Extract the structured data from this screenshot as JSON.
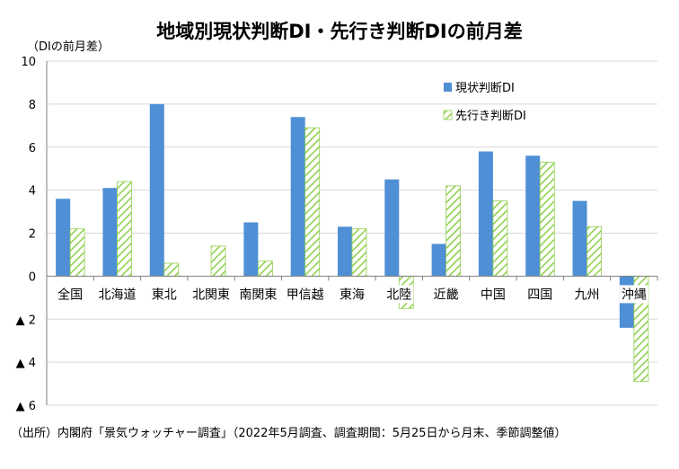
{
  "chart_data": {
    "type": "bar",
    "title": "地域別現状判断DI・先行き判断DIの前月差",
    "ylabel": "（DIの前月差）",
    "ylim": [
      -6,
      10
    ],
    "yticks": [
      10,
      8,
      6,
      4,
      2,
      0,
      -2,
      -4,
      -6
    ],
    "ytick_labels": [
      "10",
      "8",
      "6",
      "4",
      "2",
      "0",
      "▲ 2",
      "▲ 4",
      "▲ 6"
    ],
    "grid": true,
    "legend_position": "top-right",
    "categories": [
      "全国",
      "北海道",
      "東北",
      "北関東",
      "南関東",
      "甲信越",
      "東海",
      "北陸",
      "近畿",
      "中国",
      "四国",
      "九州",
      "沖縄"
    ],
    "series": [
      {
        "name": "現状判断DI",
        "color": "#4f8fd6",
        "pattern": "solid",
        "values": [
          3.6,
          4.1,
          8.0,
          0.0,
          2.5,
          7.4,
          2.3,
          4.5,
          1.5,
          5.8,
          5.6,
          3.5,
          -2.4
        ]
      },
      {
        "name": "先行き判断DI",
        "color": "#92d050",
        "pattern": "hatched",
        "values": [
          2.2,
          4.4,
          0.6,
          1.4,
          0.7,
          6.9,
          2.2,
          -1.5,
          4.2,
          3.5,
          5.3,
          2.3,
          -4.9
        ]
      }
    ],
    "source": "（出所）内閣府「景気ウォッチャー調査」（2022年5月調査、調査期間：5月25日から月末、季節調整値）"
  }
}
